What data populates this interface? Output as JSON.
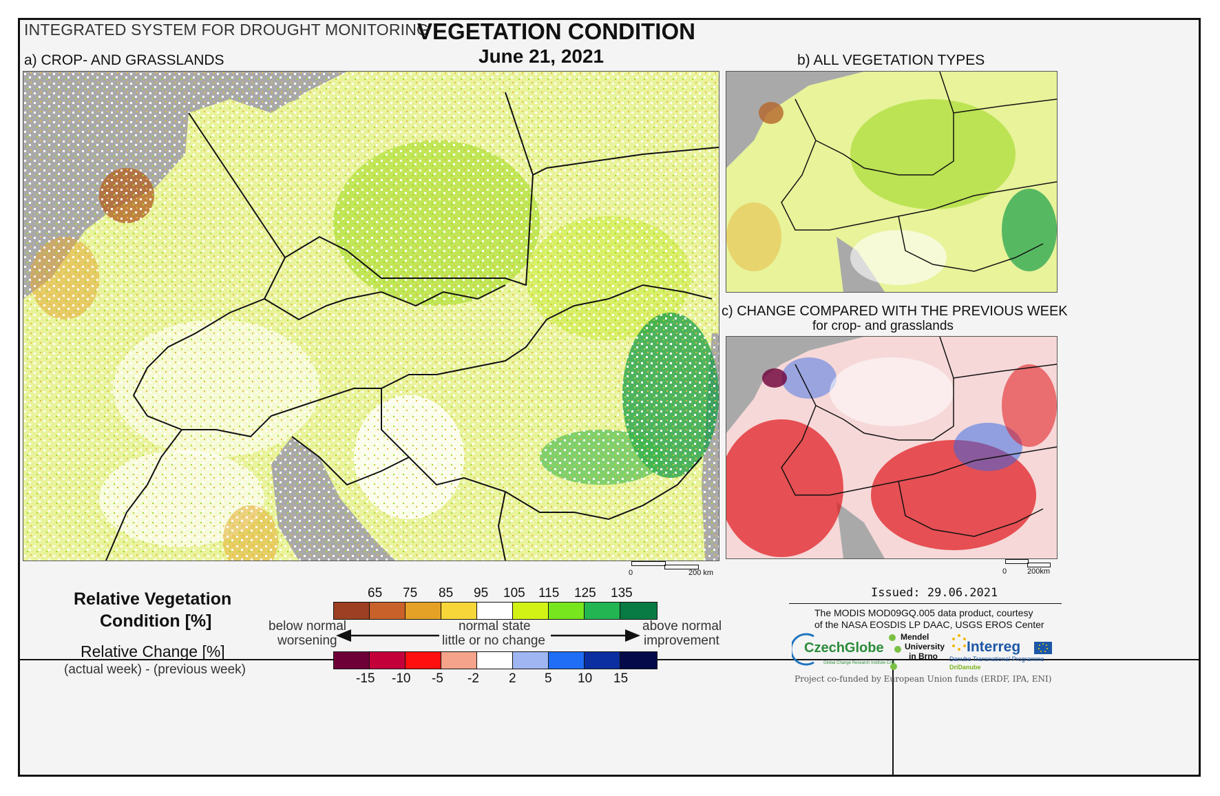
{
  "header": {
    "system_title": "INTEGRATED SYSTEM FOR DROUGHT MONITORING",
    "main_title": "VEGETATION CONDITION",
    "date": "June 21, 2021"
  },
  "panels": {
    "a_label": "a) CROP- AND GRASSLANDS",
    "b_label": "b) ALL VEGETATION TYPES",
    "c_label": "c) CHANGE COMPARED WITH THE PREVIOUS WEEK",
    "c_sublabel": "for crop- and grasslands"
  },
  "scalebars": {
    "a": {
      "zero": "0",
      "end": "200 km"
    },
    "c": {
      "zero": "0",
      "end": "200km"
    }
  },
  "legend": {
    "rvc_title_line1": "Relative Vegetation",
    "rvc_title_line2": "Condition [%]",
    "rc_title": "Relative Change [%]",
    "rc_subtitle": "(actual week) - (previous week)",
    "below_line1": "below normal",
    "below_line2": "worsening",
    "normal_line1": "normal state",
    "normal_line2": "little or no change",
    "above_line1": "above normal",
    "above_line2": "improvement",
    "rvc_ticks": [
      "65",
      "75",
      "85",
      "95",
      "105",
      "115",
      "125",
      "135"
    ],
    "rvc_colors": [
      "#9c3f22",
      "#c8612a",
      "#e5a125",
      "#f7d63a",
      "#ffffff",
      "#d2f215",
      "#78e61e",
      "#22b552",
      "#087a43"
    ],
    "rc_ticks": [
      "-15",
      "-10",
      "-5",
      "-2",
      "2",
      "5",
      "10",
      "15"
    ],
    "rc_colors": [
      "#6e0038",
      "#c4003b",
      "#ff1010",
      "#f5a38a",
      "#ffffff",
      "#9fb6f2",
      "#1f6ef5",
      "#0b2fa0",
      "#050b4a"
    ]
  },
  "info": {
    "issued": "Issued: 29.06.2021",
    "credit_line1": "The MODIS MOD09GQ.005 data product, courtesy",
    "credit_line2": "of the NASA EOSDIS LP DAAC, USGS EROS Center",
    "czechglobe": "CzechGlobe",
    "czechglobe_sub": "Global Change Research Institute CAS",
    "mendel_line1": "Mendel",
    "mendel_line2": "University",
    "mendel_line3": "in Brno",
    "interreg": "Interreg",
    "interreg_sub1": "Danube Transnational Programme",
    "interreg_sub2": "DriDanube",
    "funding": "Project co-funded by European Union funds (ERDF, IPA, ENI)"
  }
}
